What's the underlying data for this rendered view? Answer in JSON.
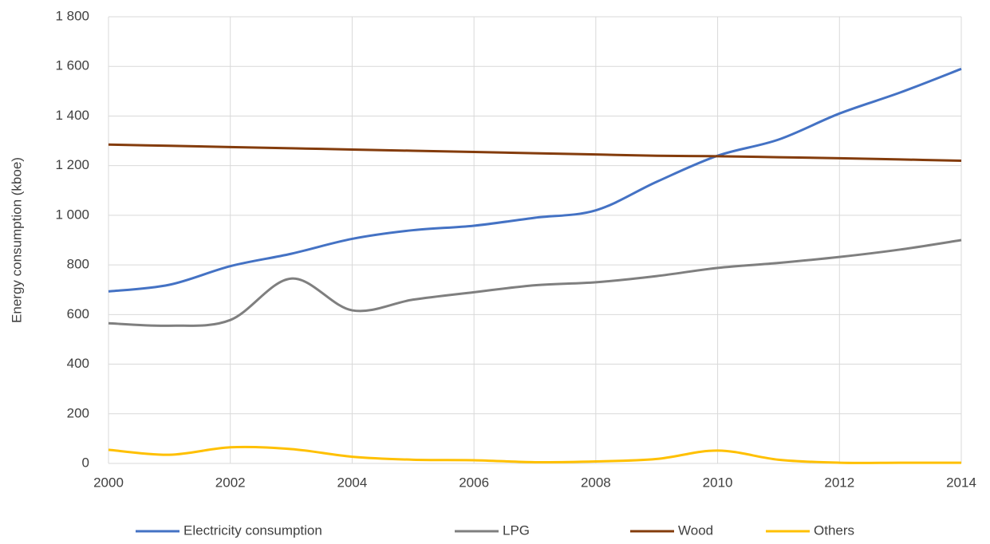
{
  "chart_data": {
    "type": "line",
    "y_label": "Energy consumption (kboe)",
    "x": [
      2000,
      2001,
      2002,
      2003,
      2004,
      2005,
      2006,
      2007,
      2008,
      2009,
      2010,
      2011,
      2012,
      2013,
      2014
    ],
    "series": [
      {
        "name": "Electricity consumption",
        "color": "#4472c4",
        "values": [
          693,
          720,
          795,
          845,
          905,
          940,
          958,
          990,
          1020,
          1135,
          1240,
          1305,
          1410,
          1495,
          1590
        ]
      },
      {
        "name": "LPG",
        "color": "#7f7f7f",
        "values": [
          565,
          555,
          578,
          745,
          617,
          660,
          690,
          718,
          730,
          755,
          788,
          808,
          832,
          862,
          900
        ]
      },
      {
        "name": "Wood",
        "color": "#843c0c",
        "values": [
          1285,
          1280,
          1275,
          1270,
          1265,
          1260,
          1255,
          1250,
          1245,
          1240,
          1238,
          1234,
          1230,
          1225,
          1220
        ]
      },
      {
        "name": "Others",
        "color": "#ffc000",
        "values": [
          55,
          35,
          65,
          58,
          27,
          15,
          13,
          5,
          8,
          18,
          52,
          15,
          3,
          3,
          3
        ]
      }
    ],
    "xlim": [
      2000,
      2014
    ],
    "xticks": [
      2000,
      2002,
      2004,
      2006,
      2008,
      2010,
      2012,
      2014
    ],
    "ylim": [
      0,
      1800
    ],
    "yticks": [
      0,
      200,
      400,
      600,
      800,
      {
        "value": 1000,
        "label": "1 000"
      },
      {
        "value": 1200,
        "label": "1 200"
      },
      {
        "value": 1400,
        "label": "1 400"
      },
      {
        "value": 1600,
        "label": "1 600"
      },
      {
        "value": 1800,
        "label": "1 800"
      }
    ],
    "grid": true,
    "smooth": true,
    "legend": "bottom"
  }
}
